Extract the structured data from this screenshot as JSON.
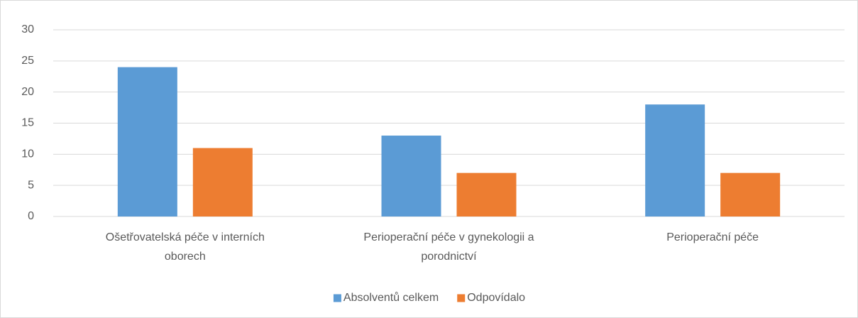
{
  "chart_data": {
    "type": "bar",
    "categories": [
      "Ošetřovatelská péče v interních oborech",
      "Perioperační péče v gynekologii a porodnictví",
      "Perioperační péče"
    ],
    "series": [
      {
        "name": "Absolventů celkem",
        "color": "#5b9bd5",
        "values": [
          24,
          13,
          18
        ]
      },
      {
        "name": "Odpovídalo",
        "color": "#ed7d31",
        "values": [
          11,
          7,
          7
        ]
      }
    ],
    "ylim": [
      0,
      30
    ],
    "yticks": [
      0,
      5,
      10,
      15,
      20,
      25,
      30
    ],
    "grid": true,
    "legend": "bottom"
  }
}
